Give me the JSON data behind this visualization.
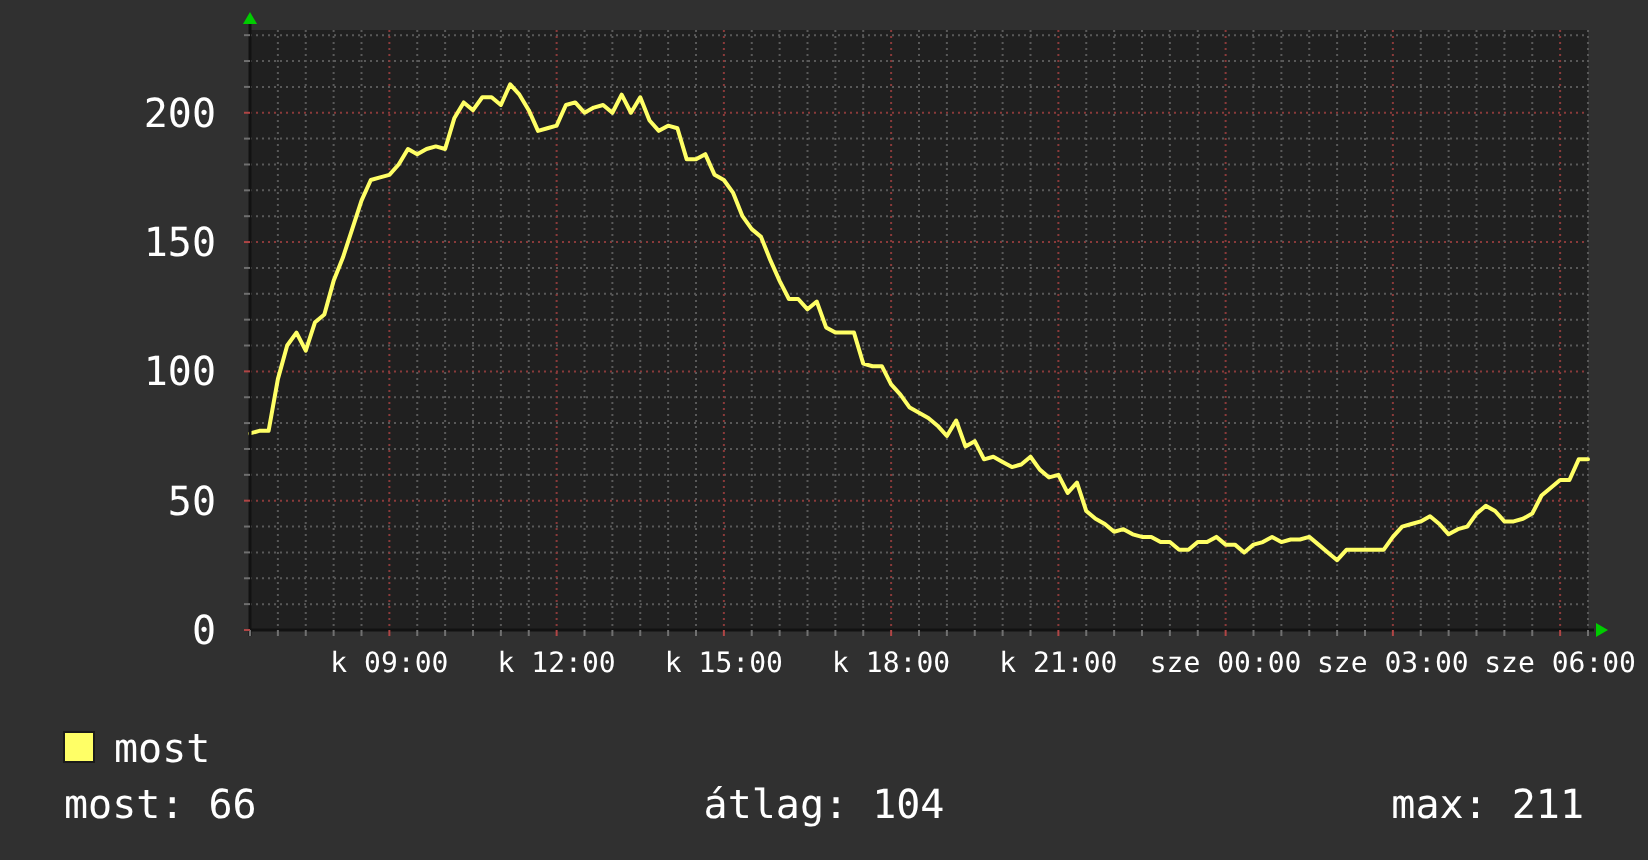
{
  "chart_data": {
    "type": "line",
    "categories": [
      null,
      null,
      null,
      null,
      null,
      null,
      null,
      null,
      null,
      null,
      null,
      null,
      null,
      null,
      null,
      "k 09:00",
      null,
      null,
      null,
      null,
      null,
      null,
      null,
      null,
      null,
      null,
      null,
      null,
      null,
      null,
      null,
      null,
      null,
      "k 12:00",
      null,
      null,
      null,
      null,
      null,
      null,
      null,
      null,
      null,
      null,
      null,
      null,
      null,
      null,
      null,
      null,
      null,
      "k 15:00",
      null,
      null,
      null,
      null,
      null,
      null,
      null,
      null,
      null,
      null,
      null,
      null,
      null,
      null,
      null,
      null,
      null,
      "k 18:00",
      null,
      null,
      null,
      null,
      null,
      null,
      null,
      null,
      null,
      null,
      null,
      null,
      null,
      null,
      null,
      null,
      null,
      "k 21:00",
      null,
      null,
      null,
      null,
      null,
      null,
      null,
      null,
      null,
      null,
      null,
      null,
      null,
      null,
      null,
      null,
      null,
      "sze 00:00",
      null,
      null,
      null,
      null,
      null,
      null,
      null,
      null,
      null,
      null,
      null,
      null,
      null,
      null,
      null,
      null,
      null,
      "sze 03:00",
      null,
      null,
      null,
      null,
      null,
      null,
      null,
      null,
      null,
      null,
      null,
      null,
      null,
      null,
      null,
      null,
      null,
      "sze 06:00",
      null,
      null,
      null
    ],
    "ylim": [
      0,
      232
    ],
    "yticks": [
      0,
      {
        "value": 10,
        "label": null
      },
      {
        "value": 20,
        "label": null
      },
      {
        "value": 30,
        "label": null
      },
      {
        "value": 40,
        "label": null
      },
      50,
      {
        "value": 60,
        "label": null
      },
      {
        "value": 70,
        "label": null
      },
      {
        "value": 80,
        "label": null
      },
      {
        "value": 90,
        "label": null
      },
      100,
      {
        "value": 110,
        "label": null
      },
      {
        "value": 120,
        "label": null
      },
      {
        "value": 130,
        "label": null
      },
      {
        "value": 140,
        "label": null
      },
      150,
      {
        "value": 160,
        "label": null
      },
      {
        "value": 170,
        "label": null
      },
      {
        "value": 180,
        "label": null
      },
      {
        "value": 190,
        "label": null
      },
      200,
      {
        "value": 210,
        "label": null
      },
      {
        "value": 220,
        "label": null
      },
      {
        "value": 230,
        "label": null
      }
    ],
    "grid": true,
    "legend": "bottom left",
    "series": [
      {
        "name": "most",
        "color": "#ffff66",
        "values": [
          76,
          77,
          77,
          97,
          110,
          115,
          108,
          119,
          122,
          135,
          144,
          155,
          166,
          174,
          175,
          176,
          180,
          186,
          184,
          186,
          187,
          186,
          198,
          204,
          201,
          206,
          206,
          203,
          211,
          207,
          201,
          193,
          194,
          195,
          203,
          204,
          200,
          202,
          203,
          200,
          207,
          200,
          206,
          197,
          193,
          195,
          194,
          182,
          182,
          184,
          176,
          174,
          169,
          160,
          155,
          152,
          143,
          135,
          128,
          128,
          124,
          127,
          117,
          115,
          115,
          115,
          103,
          102,
          102,
          95,
          91,
          86,
          84,
          82,
          79,
          75,
          81,
          71,
          73,
          66,
          67,
          65,
          63,
          64,
          67,
          62,
          59,
          60,
          53,
          57,
          46,
          43,
          41,
          38,
          39,
          37,
          36,
          36,
          34,
          34,
          31,
          31,
          34,
          34,
          36,
          33,
          33,
          30,
          33,
          34,
          36,
          34,
          35,
          35,
          36,
          33,
          30,
          27,
          31,
          31,
          31,
          31,
          31,
          36,
          40,
          41,
          42,
          44,
          41,
          37,
          39,
          40,
          45,
          48,
          46,
          42,
          42,
          43,
          45,
          52,
          55,
          58,
          58,
          66,
          66
        ]
      }
    ],
    "annotations": [
      "most: 66",
      "átlag: 104",
      "max: 211"
    ]
  }
}
